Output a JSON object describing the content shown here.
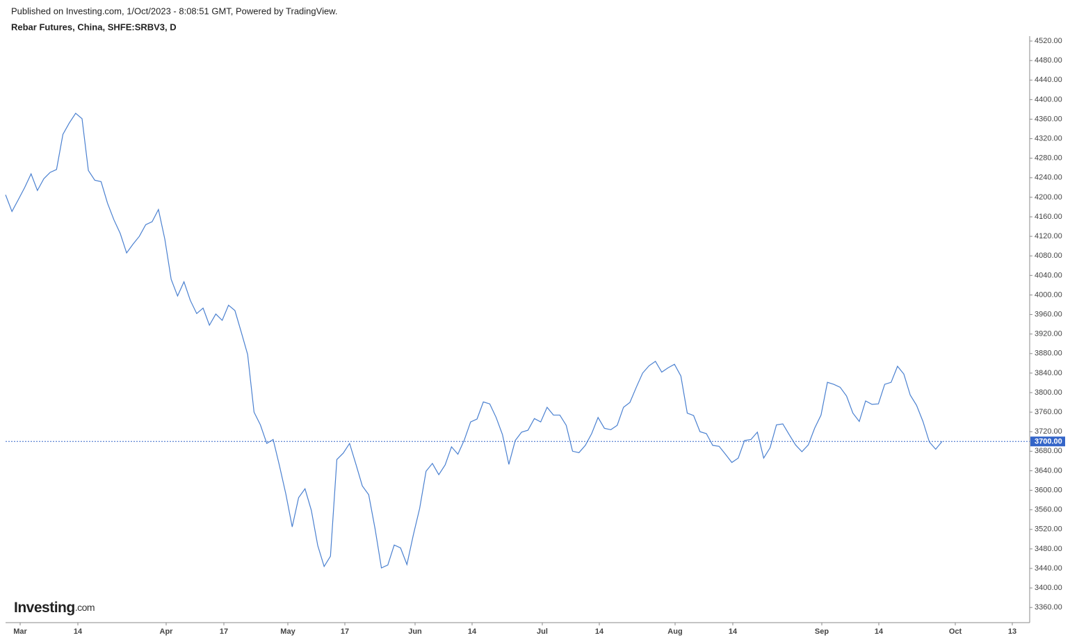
{
  "chart_data": {
    "type": "line",
    "published": "Published on Investing.com, 1/Oct/2023 - 8:08:51 GMT, Powered by TradingView.",
    "title": "Rebar Futures, China, SHFE:SRBV3, D",
    "logo": {
      "main": "Investing",
      "suffix": ".com"
    },
    "color": "#4a80d0",
    "values": [
      4205,
      4171,
      4195,
      4220,
      4248,
      4214,
      4238,
      4251,
      4257,
      4329,
      4352,
      4372,
      4361,
      4255,
      4235,
      4232,
      4188,
      4154,
      4126,
      4086,
      4104,
      4120,
      4144,
      4150,
      4175,
      4114,
      4032,
      3998,
      4027,
      3989,
      3962,
      3973,
      3938,
      3961,
      3948,
      3979,
      3968,
      3924,
      3878,
      3760,
      3734,
      3696,
      3704,
      3650,
      3592,
      3525,
      3585,
      3603,
      3559,
      3487,
      3444,
      3465,
      3663,
      3676,
      3696,
      3653,
      3609,
      3591,
      3521,
      3441,
      3447,
      3488,
      3482,
      3448,
      3508,
      3563,
      3639,
      3655,
      3632,
      3652,
      3689,
      3674,
      3703,
      3740,
      3746,
      3781,
      3777,
      3749,
      3714,
      3653,
      3702,
      3719,
      3723,
      3747,
      3740,
      3770,
      3754,
      3754,
      3733,
      3680,
      3677,
      3692,
      3716,
      3749,
      3727,
      3724,
      3733,
      3770,
      3780,
      3811,
      3840,
      3855,
      3864,
      3842,
      3851,
      3858,
      3834,
      3758,
      3753,
      3720,
      3716,
      3692,
      3690,
      3674,
      3657,
      3666,
      3702,
      3704,
      3719,
      3666,
      3687,
      3734,
      3736,
      3714,
      3693,
      3679,
      3693,
      3727,
      3754,
      3821,
      3817,
      3811,
      3793,
      3758,
      3741,
      3783,
      3776,
      3777,
      3817,
      3821,
      3854,
      3838,
      3795,
      3774,
      3741,
      3699,
      3684,
      3700
    ],
    "x_labels": [
      "Mar",
      "14",
      "Apr",
      "17",
      "May",
      "17",
      "Jun",
      "14",
      "Jul",
      "14",
      "Aug",
      "14",
      "Sep",
      "14",
      "Oct",
      "13"
    ],
    "ylim": [
      3329,
      4530
    ],
    "yticks": [
      {
        "value": 3360,
        "label": "3360.00"
      },
      {
        "value": 3400,
        "label": "3400.00"
      },
      {
        "value": 3440,
        "label": "3440.00"
      },
      {
        "value": 3480,
        "label": "3480.00"
      },
      {
        "value": 3520,
        "label": "3520.00"
      },
      {
        "value": 3560,
        "label": "3560.00"
      },
      {
        "value": 3600,
        "label": "3600.00"
      },
      {
        "value": 3640,
        "label": "3640.00"
      },
      {
        "value": 3680,
        "label": "3680.00"
      },
      {
        "value": 3720,
        "label": "3720.00"
      },
      {
        "value": 3760,
        "label": "3760.00"
      },
      {
        "value": 3800,
        "label": "3800.00"
      },
      {
        "value": 3840,
        "label": "3840.00"
      },
      {
        "value": 3880,
        "label": "3880.00"
      },
      {
        "value": 3920,
        "label": "3920.00"
      },
      {
        "value": 3960,
        "label": "3960.00"
      },
      {
        "value": 4000,
        "label": "4000.00"
      },
      {
        "value": 4040,
        "label": "4040.00"
      },
      {
        "value": 4080,
        "label": "4080.00"
      },
      {
        "value": 4120,
        "label": "4120.00"
      },
      {
        "value": 4160,
        "label": "4160.00"
      },
      {
        "value": 4200,
        "label": "4200.00"
      },
      {
        "value": 4240,
        "label": "4240.00"
      },
      {
        "value": 4280,
        "label": "4280.00"
      },
      {
        "value": 4320,
        "label": "4320.00"
      },
      {
        "value": 4360,
        "label": "4360.00"
      },
      {
        "value": 4400,
        "label": "4400.00"
      },
      {
        "value": 4440,
        "label": "4440.00"
      },
      {
        "value": 4480,
        "label": "4480.00"
      },
      {
        "value": 4520,
        "label": "4520.00"
      }
    ],
    "last_value": {
      "value": 3700,
      "label": "3700.00",
      "color": "#3465c8"
    }
  }
}
